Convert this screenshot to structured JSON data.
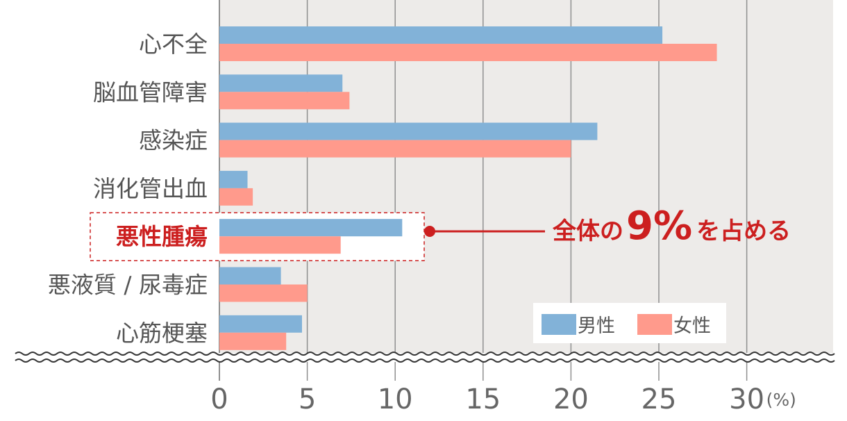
{
  "chart_data": {
    "type": "bar",
    "orientation": "horizontal",
    "categories": [
      "心不全",
      "脳血管障害",
      "感染症",
      "消化管出血",
      "悪性腫瘍",
      "悪液質 / 尿毒症",
      "心筋梗塞"
    ],
    "series": [
      {
        "name": "男性",
        "values": [
          25.2,
          7.0,
          21.5,
          1.6,
          10.4,
          3.5,
          4.7
        ]
      },
      {
        "name": "女性",
        "values": [
          28.3,
          7.4,
          20.0,
          1.9,
          6.9,
          5.0,
          3.8
        ]
      }
    ],
    "xlim": [
      0,
      30
    ],
    "xticks": [
      "0",
      "5",
      "10",
      "15",
      "20",
      "25",
      "30"
    ],
    "x_unit": "(%)",
    "grid": "vertical",
    "legend": "bottom-right",
    "highlight_category": "悪性腫瘍",
    "annotation": {
      "prefix": "全体の",
      "value": "9%",
      "suffix": "を占める"
    }
  },
  "colors": {
    "male": "#82b2d8",
    "female": "#ff9a8c",
    "plot_bg": "#edebe9",
    "grid": "#8f8f8f",
    "highlight": "#cc1f1f"
  }
}
